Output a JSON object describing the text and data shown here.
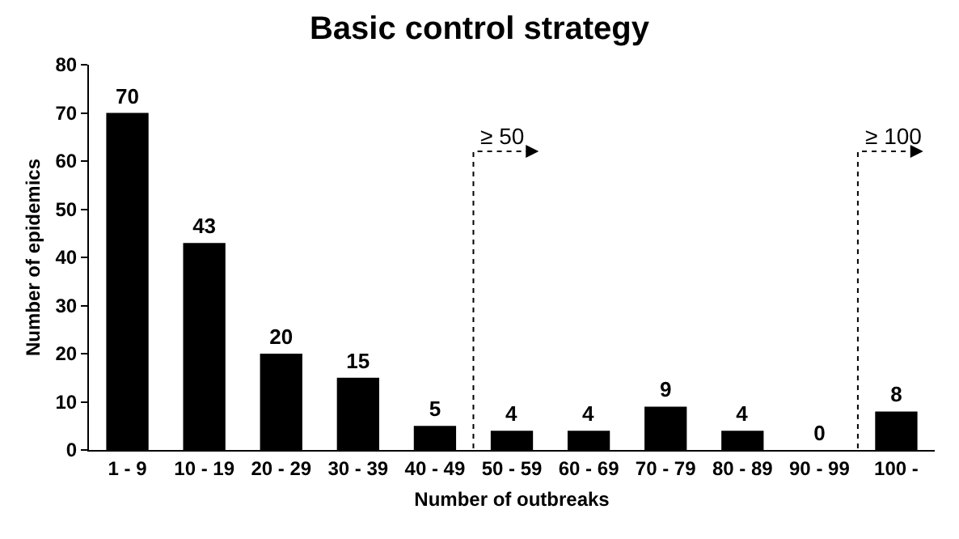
{
  "chart_data": {
    "type": "bar",
    "title": "Basic control strategy",
    "xlabel": "Number of outbreaks",
    "ylabel": "Number of epidemics",
    "categories": [
      "1 - 9",
      "10 - 19",
      "20 - 29",
      "30 - 39",
      "40 - 49",
      "50 - 59",
      "60 - 69",
      "70 - 79",
      "80 - 89",
      "90 - 99",
      "100 -"
    ],
    "values": [
      70,
      43,
      20,
      15,
      5,
      4,
      4,
      9,
      4,
      0,
      8
    ],
    "color": "#000000",
    "ylim": [
      0,
      80
    ],
    "yticks": [
      0,
      10,
      20,
      30,
      40,
      50,
      60,
      70,
      80
    ],
    "grid": false,
    "data_labels": true,
    "annotations": [
      "≥ 50",
      "≥ 100"
    ]
  }
}
